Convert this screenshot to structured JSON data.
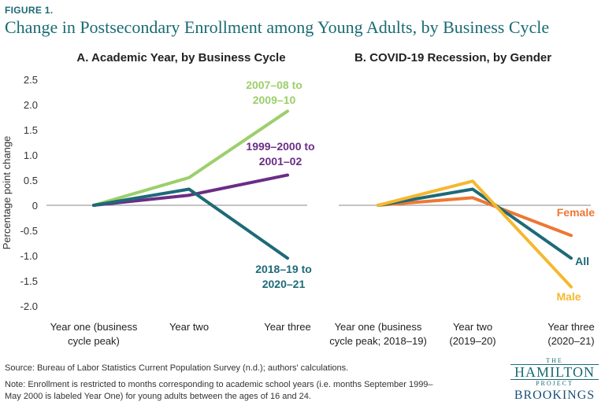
{
  "figure_label": "FIGURE 1.",
  "title": "Change in Postsecondary Enrollment among Young Adults, by Business Cycle",
  "source": "Source: Bureau of Labor Statistics Current Population Survey (n.d.); authors' calculations.",
  "note_line1": "Note: Enrollment is restricted to months corresponding to academic school years (i.e. months September 1999–",
  "note_line2": "May 2000 is labeled Year One) for young adults between the ages of 16 and 24.",
  "logo": {
    "the": "THE",
    "hamilton": "HAMILTON",
    "project": "PROJECT",
    "brookings": "BROOKINGS"
  },
  "chart_data": [
    {
      "type": "line",
      "title": "A. Academic Year, by Business Cycle",
      "ylabel": "Percentage point change",
      "ylim": [
        -2.0,
        2.5
      ],
      "yticks": [
        "2.5",
        "2.0",
        "1.5",
        "1.0",
        "0.5",
        "0",
        "-0.5",
        "-1.0",
        "-1.5",
        "-2.0"
      ],
      "yticks_values": [
        2.5,
        2.0,
        1.5,
        1.0,
        0.5,
        0,
        -0.5,
        -1.0,
        -1.5,
        -2.0
      ],
      "categories": [
        [
          "Year one (business",
          "cycle peak)"
        ],
        [
          "Year two"
        ],
        [
          "Year three"
        ]
      ],
      "series": [
        {
          "name_lines": [
            "2007–08 to",
            "2009–10"
          ],
          "color": "#9ccf6b",
          "values": [
            0,
            0.55,
            1.87
          ]
        },
        {
          "name_lines": [
            "1999–2000 to",
            "2001–02"
          ],
          "color": "#6b2d86",
          "values": [
            0,
            0.2,
            0.6
          ]
        },
        {
          "name_lines": [
            "2018–19 to",
            "2020–21"
          ],
          "color": "#1d6a78",
          "values": [
            0,
            0.32,
            -1.05
          ]
        }
      ]
    },
    {
      "type": "line",
      "title": "B. COVID-19 Recession, by Gender",
      "ylim": [
        -2.0,
        2.5
      ],
      "categories": [
        [
          "Year one (business",
          "cycle peak; 2018–19)"
        ],
        [
          "Year two",
          "(2019–20)"
        ],
        [
          "Year three",
          "(2020–21)"
        ]
      ],
      "series": [
        {
          "name_lines": [
            "Female"
          ],
          "color": "#ee7734",
          "values": [
            0,
            0.15,
            -0.6
          ]
        },
        {
          "name_lines": [
            "All"
          ],
          "color": "#1d6a78",
          "values": [
            0,
            0.32,
            -1.05
          ]
        },
        {
          "name_lines": [
            "Male"
          ],
          "color": "#f5b82e",
          "values": [
            0,
            0.48,
            -1.62
          ]
        }
      ]
    }
  ]
}
